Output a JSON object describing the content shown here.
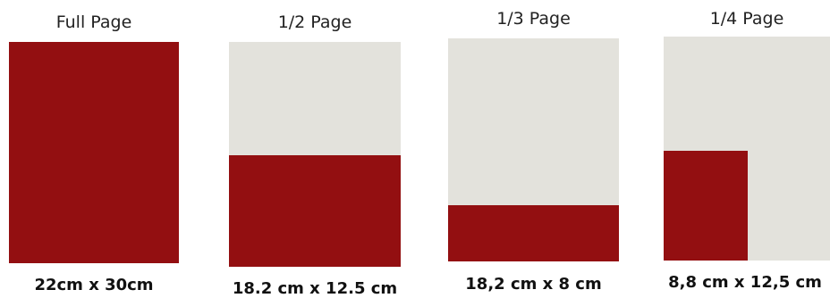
{
  "colors": {
    "page_background": "#e3e2dc",
    "ad_fill": "#930f11"
  },
  "formats": [
    {
      "title": "Full Page",
      "dimensions": "22cm x 30cm",
      "coverage": "full"
    },
    {
      "title": "1/2 Page",
      "dimensions": "18.2 cm x 12.5 cm",
      "coverage": "bottom half"
    },
    {
      "title": "1/3 Page",
      "dimensions": "18,2 cm x 8 cm",
      "coverage": "bottom third"
    },
    {
      "title": "1/4 Page",
      "dimensions": "8,8 cm x 12,5 cm",
      "coverage": "bottom-left quarter"
    }
  ]
}
